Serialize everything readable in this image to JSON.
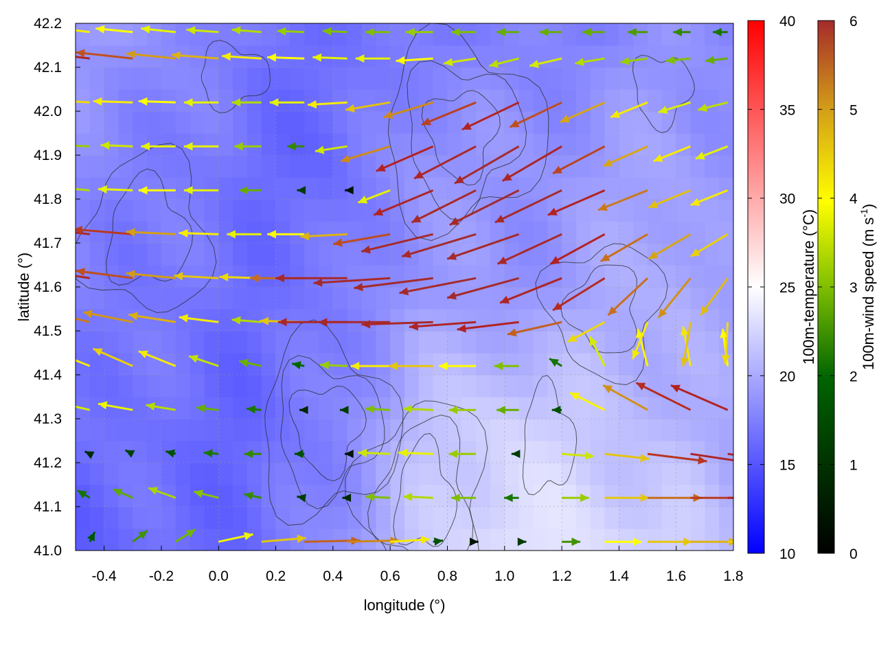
{
  "chart_data": {
    "type": "heatmap",
    "title": "",
    "xlabel": "longitude (°)",
    "ylabel": "latitude (°)",
    "xlim": [
      -0.5,
      1.8
    ],
    "ylim": [
      41.0,
      42.2
    ],
    "x_ticks": [
      "-0.4",
      "-0.2",
      "0.0",
      "0.2",
      "0.4",
      "0.6",
      "0.8",
      "1.0",
      "1.2",
      "1.4",
      "1.6",
      "1.8"
    ],
    "x_tick_values": [
      -0.4,
      -0.2,
      0.0,
      0.2,
      0.4,
      0.6,
      0.8,
      1.0,
      1.2,
      1.4,
      1.6,
      1.8
    ],
    "y_ticks": [
      "41.0",
      "41.1",
      "41.2",
      "41.3",
      "41.4",
      "41.5",
      "41.6",
      "41.7",
      "41.8",
      "41.9",
      "42.0",
      "42.1",
      "42.2"
    ],
    "y_tick_values": [
      41.0,
      41.1,
      41.2,
      41.3,
      41.4,
      41.5,
      41.6,
      41.7,
      41.8,
      41.9,
      42.0,
      42.1,
      42.2
    ],
    "grid": true,
    "temperature_colorbar": {
      "label": "100m-temperature (°C)",
      "range": [
        10,
        40
      ],
      "ticks": [
        "10",
        "15",
        "20",
        "25",
        "30",
        "35",
        "40"
      ],
      "tick_values": [
        10,
        15,
        20,
        25,
        30,
        35,
        40
      ],
      "colors": [
        "#0000ff",
        "#ffffff",
        "#ff0000"
      ]
    },
    "wind_colorbar": {
      "label": "100m-wind speed (m s",
      "label_sup": "-1",
      "label_end": ")",
      "range": [
        0,
        6
      ],
      "ticks": [
        "0",
        "1",
        "2",
        "3",
        "4",
        "5",
        "6"
      ],
      "tick_values": [
        0,
        1,
        2,
        3,
        4,
        5,
        6
      ],
      "colors": [
        "#000000",
        "#006400",
        "#7fbf00",
        "#ffff00",
        "#d4a017",
        "#b22222",
        "#a52a2a"
      ]
    },
    "temperature_field": {
      "description_units": "°C",
      "x": [
        -0.5,
        -0.2,
        0.1,
        0.4,
        0.7,
        1.0,
        1.3,
        1.6,
        1.8
      ],
      "y": [
        41.0,
        41.3,
        41.6,
        41.9,
        42.2
      ],
      "values": [
        [
          15.5,
          16.5,
          16.0,
          18.5,
          21.5,
          23.5,
          23.0,
          22.5,
          20.5
        ],
        [
          17.0,
          16.5,
          16.0,
          17.5,
          21.0,
          22.5,
          21.5,
          20.5,
          19.5
        ],
        [
          17.5,
          17.0,
          16.5,
          17.0,
          19.0,
          18.5,
          19.5,
          20.5,
          19.0
        ],
        [
          18.0,
          17.5,
          16.5,
          16.0,
          19.0,
          18.5,
          19.0,
          19.5,
          18.5
        ],
        [
          19.0,
          18.5,
          17.0,
          16.5,
          17.0,
          17.5,
          17.5,
          18.5,
          18.0
        ]
      ]
    },
    "wind_field": {
      "units": "m s-1",
      "lon": [
        -0.45,
        -0.3,
        -0.15,
        0.0,
        0.15,
        0.3,
        0.45,
        0.6,
        0.75,
        0.9,
        1.05,
        1.2,
        1.35,
        1.5,
        1.65,
        1.78
      ],
      "lat": [
        41.02,
        41.12,
        41.22,
        41.32,
        41.42,
        41.52,
        41.62,
        41.72,
        41.82,
        41.92,
        42.02,
        42.12,
        42.18
      ],
      "u": [
        [
          0.4,
          1.2,
          1.6,
          2.8,
          3.6,
          4.5,
          4.2,
          3.2,
          0.8,
          0.2,
          0.6,
          1.5,
          3.0,
          3.6,
          3.8,
          3.5
        ],
        [
          -1.0,
          -1.6,
          -2.2,
          -2.0,
          -1.4,
          -0.6,
          -0.4,
          -2.0,
          -2.4,
          -2.0,
          -1.2,
          2.2,
          3.6,
          4.4,
          4.8,
          5.0
        ],
        [
          -0.4,
          -0.6,
          -0.8,
          -1.2,
          -1.4,
          -0.8,
          -0.2,
          -2.6,
          -2.8,
          -2.2,
          -0.6,
          2.6,
          3.6,
          4.8,
          5.4,
          5.6
        ],
        [
          -2.6,
          -2.8,
          -2.4,
          -1.8,
          -1.2,
          -0.4,
          -0.6,
          -2.0,
          -2.4,
          -2.2,
          -1.8,
          -0.8,
          -2.8,
          -3.6,
          -4.4,
          -4.6
        ],
        [
          -3.0,
          -3.2,
          -3.0,
          -2.4,
          -1.8,
          -1.0,
          -2.2,
          -3.2,
          -3.6,
          -3.0,
          -2.0,
          -1.0,
          -1.2,
          -0.8,
          -0.6,
          -0.4
        ],
        [
          -4.2,
          -4.0,
          -3.8,
          -3.2,
          -2.4,
          -3.6,
          -5.6,
          -5.8,
          -5.8,
          -5.4,
          -5.0,
          -4.4,
          -3.0,
          -1.2,
          -0.6,
          -0.2
        ],
        [
          -5.2,
          -4.6,
          -4.0,
          -3.6,
          -3.4,
          -4.4,
          -5.8,
          -6.2,
          -6.4,
          -6.2,
          -5.8,
          -5.0,
          -4.2,
          -3.2,
          -2.6,
          -2.2
        ],
        [
          -5.4,
          -4.8,
          -4.0,
          -3.2,
          -2.8,
          -3.0,
          -3.8,
          -4.6,
          -5.8,
          -6.0,
          -5.8,
          -5.2,
          -4.4,
          -3.8,
          -3.4,
          -3.0
        ],
        [
          -2.4,
          -2.8,
          -3.0,
          -2.8,
          -1.8,
          -0.6,
          -0.2,
          -2.6,
          -4.8,
          -5.2,
          -5.6,
          -5.4,
          -4.6,
          -4.0,
          -3.4,
          -3.0
        ],
        [
          -2.2,
          -2.6,
          -2.8,
          -2.8,
          -2.2,
          -1.4,
          -2.6,
          -4.0,
          -4.6,
          -5.0,
          -5.2,
          -4.8,
          -4.2,
          -3.6,
          -3.0,
          -2.6
        ],
        [
          -3.4,
          -3.2,
          -3.0,
          -2.8,
          -2.4,
          -2.8,
          -3.2,
          -3.6,
          -4.0,
          -4.4,
          -4.6,
          -4.2,
          -3.6,
          -3.0,
          -2.6,
          -2.4
        ],
        [
          -5.2,
          -4.6,
          -4.0,
          -3.8,
          -3.2,
          -3.0,
          -2.8,
          -2.8,
          -3.0,
          -2.6,
          -2.4,
          -2.6,
          -2.4,
          -2.2,
          -2.0,
          -1.8
        ],
        [
          -3.2,
          -3.0,
          -2.8,
          -2.6,
          -2.4,
          -2.2,
          -2.0,
          -2.0,
          -2.2,
          -2.0,
          -1.8,
          -1.8,
          -1.8,
          -1.6,
          -1.4,
          -1.2
        ]
      ],
      "v": [
        [
          0.8,
          0.9,
          1.0,
          0.6,
          0.3,
          0.1,
          0.1,
          0.2,
          0.1,
          0.0,
          0.0,
          0.0,
          0.0,
          0.0,
          0.0,
          0.0
        ],
        [
          0.6,
          0.7,
          0.8,
          0.5,
          0.3,
          0.1,
          0.0,
          0.1,
          0.1,
          0.0,
          0.0,
          0.0,
          0.0,
          0.0,
          0.0,
          0.0
        ],
        [
          0.2,
          0.3,
          0.2,
          0.1,
          0.0,
          0.0,
          0.0,
          0.1,
          0.1,
          0.0,
          0.0,
          -0.2,
          -0.4,
          -0.6,
          -0.8,
          -0.8
        ],
        [
          0.6,
          0.5,
          0.4,
          0.2,
          0.1,
          0.0,
          0.0,
          0.1,
          0.1,
          0.0,
          0.0,
          0.0,
          1.4,
          2.0,
          2.2,
          2.0
        ],
        [
          1.2,
          1.4,
          1.2,
          0.8,
          0.4,
          0.2,
          0.1,
          0.0,
          0.0,
          0.0,
          0.0,
          0.6,
          2.4,
          3.0,
          3.2,
          3.0
        ],
        [
          1.0,
          0.8,
          0.6,
          0.4,
          0.2,
          0.1,
          0.0,
          0.0,
          -0.2,
          -0.4,
          -0.6,
          -1.0,
          -1.6,
          -3.0,
          -3.6,
          -3.4
        ],
        [
          0.8,
          0.6,
          0.4,
          0.2,
          0.1,
          0.0,
          0.0,
          -0.4,
          -0.8,
          -1.2,
          -1.6,
          -2.0,
          -2.6,
          -3.0,
          -3.2,
          -3.0
        ],
        [
          0.6,
          0.4,
          0.2,
          0.1,
          0.0,
          0.0,
          -0.2,
          -0.8,
          -1.4,
          -1.8,
          -2.0,
          -2.4,
          -2.4,
          -2.2,
          -2.0,
          -1.8
        ],
        [
          0.2,
          0.1,
          0.0,
          0.0,
          0.0,
          0.0,
          0.0,
          -1.0,
          -2.0,
          -2.6,
          -2.8,
          -2.6,
          -2.0,
          -1.6,
          -1.4,
          -1.2
        ],
        [
          0.1,
          0.1,
          0.0,
          0.0,
          0.0,
          0.0,
          -0.4,
          -1.2,
          -2.0,
          -2.6,
          -3.0,
          -2.8,
          -2.2,
          -1.6,
          -1.2,
          -1.0
        ],
        [
          0.2,
          0.1,
          0.1,
          0.0,
          0.0,
          0.0,
          -0.2,
          -0.6,
          -1.2,
          -1.8,
          -2.2,
          -2.0,
          -1.6,
          -1.2,
          -0.8,
          -0.6
        ],
        [
          0.6,
          0.5,
          0.4,
          0.3,
          0.2,
          0.1,
          0.1,
          0.0,
          -0.2,
          -0.4,
          -0.6,
          -0.6,
          -0.4,
          -0.3,
          -0.2,
          -0.2
        ],
        [
          0.4,
          0.3,
          0.3,
          0.2,
          0.2,
          0.1,
          0.1,
          0.0,
          0.0,
          0.0,
          0.0,
          0.0,
          0.0,
          0.0,
          0.0,
          0.0
        ]
      ]
    }
  }
}
